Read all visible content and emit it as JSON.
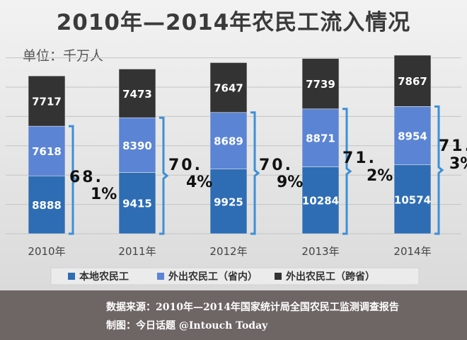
{
  "title": "2010年—2014年农民工流入情况",
  "unit": "单位：千万人",
  "footer": {
    "source": "数据来源：2010年—2014年国家统计局全国农民工监测调查报告",
    "credit": "制图：今日话题 @Intouch Today"
  },
  "chart_data": {
    "type": "bar",
    "stacked": true,
    "categories": [
      "2010年",
      "2011年",
      "2012年",
      "2013年",
      "2014年"
    ],
    "series": [
      {
        "name": "本地农民工",
        "values": [
          8888,
          9415,
          9925,
          10284,
          10574
        ],
        "color": "#2e6db4"
      },
      {
        "name": "外出农民工（省内）",
        "values": [
          7618,
          8390,
          8689,
          8871,
          8954
        ],
        "color": "#5b84d4"
      },
      {
        "name": "外出农民工（跨省）",
        "values": [
          7717,
          7473,
          7647,
          7739,
          7867
        ],
        "color": "#333333"
      }
    ],
    "annotations": [
      "68.1%",
      "70.4%",
      "70.9%",
      "71.2%",
      "71.3%"
    ],
    "legend_position": "bottom",
    "grid": true,
    "bracket_color": "#3d8fd6"
  }
}
